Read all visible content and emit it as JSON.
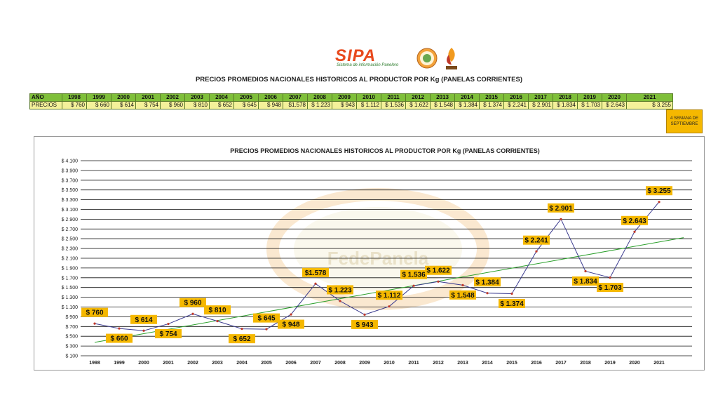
{
  "header": {
    "brand": "SIPA",
    "brand_subtitle": "Sistema de información Panelero",
    "page_title": "PRECIOS PROMEDIOS NACIONALES HISTORICOS AL PRODUCTOR POR Kg (PANELAS CORRIENTES)"
  },
  "table": {
    "year_label": "AÑO",
    "price_label": "PRECIOS",
    "years": [
      "1998",
      "1999",
      "2000",
      "2001",
      "2002",
      "2003",
      "2004",
      "2005",
      "2006",
      "2007",
      "2008",
      "2009",
      "2010",
      "2011",
      "2012",
      "2013",
      "2014",
      "2015",
      "2016",
      "2017",
      "2018",
      "2019",
      "2020",
      "2021"
    ],
    "prices": [
      "$ 760",
      "$ 660",
      "$ 614",
      "$ 754",
      "$ 960",
      "$ 810",
      "$ 652",
      "$ 645",
      "$ 948",
      "$1.578",
      "$ 1.223",
      "$ 943",
      "$ 1.112",
      "$ 1.536",
      "$ 1.622",
      "$ 1.548",
      "$ 1.384",
      "$ 1.374",
      "$ 2.241",
      "$ 2.901",
      "$ 1.834",
      "$ 1.703",
      "$ 2.643",
      "$ 3.255"
    ],
    "note": "4 SEMANA DE SEPTIEMBRE"
  },
  "colors": {
    "line": "#3b3b8f",
    "trend": "#2ca02c",
    "label_bg": "#f5b800",
    "year_header": "#7fbf3a",
    "price_row": "#f4f19a",
    "brand": "#e8491d"
  },
  "chart_data": {
    "type": "line",
    "title": "PRECIOS PROMEDIOS NACIONALES HISTORICOS AL PRODUCTOR POR Kg (PANELAS CORRIENTES)",
    "categories": [
      "1998",
      "1999",
      "2000",
      "2001",
      "2002",
      "2003",
      "2004",
      "2005",
      "2006",
      "2007",
      "2008",
      "2009",
      "2010",
      "2011",
      "2012",
      "2013",
      "2014",
      "2015",
      "2016",
      "2017",
      "2018",
      "2019",
      "2020",
      "2021"
    ],
    "series": [
      {
        "values": [
          760,
          660,
          614,
          754,
          960,
          810,
          652,
          645,
          948,
          1578,
          1223,
          943,
          1112,
          1536,
          1622,
          1548,
          1384,
          1374,
          2241,
          2901,
          1834,
          1703,
          2643,
          3255
        ]
      }
    ],
    "data_labels": [
      "$ 760",
      "$ 660",
      "$ 614",
      "$ 754",
      "$ 960",
      "$ 810",
      "$ 652",
      "$ 645",
      "$ 948",
      "$1.578",
      "$ 1.223",
      "$ 943",
      "$ 1.112",
      "$ 1.536",
      "$ 1.622",
      "$ 1.548",
      "$ 1.384",
      "$ 1.374",
      "$ 2.241",
      "$ 2.901",
      "$ 1.834",
      "$ 1.703",
      "$ 2.643",
      "$ 3.255"
    ],
    "label_side": [
      "above",
      "below",
      "above",
      "below",
      "above",
      "above",
      "below",
      "above",
      "below",
      "above",
      "above",
      "below",
      "above",
      "above",
      "above",
      "below",
      "above",
      "below",
      "above",
      "above",
      "below",
      "below",
      "above",
      "above"
    ],
    "trendline": {
      "type": "linear",
      "x_range": [
        1998,
        2022
      ]
    },
    "ylim": [
      100,
      4100
    ],
    "yticks": [
      100,
      300,
      500,
      700,
      900,
      1100,
      1300,
      1500,
      1700,
      1900,
      2100,
      2300,
      2500,
      2700,
      2900,
      3100,
      3300,
      3500,
      3700,
      3900,
      4100
    ],
    "ytick_labels": [
      "$ 100",
      "$ 300",
      "$ 500",
      "$ 700",
      "$ 900",
      "$ 1.100",
      "$ 1.300",
      "$ 1.500",
      "$ 1.700",
      "$ 1.900",
      "$ 2.100",
      "$ 2.300",
      "$ 2.500",
      "$ 2.700",
      "$ 2.900",
      "$ 3.100",
      "$ 3.300",
      "$ 3.500",
      "$ 3.700",
      "$ 3.900",
      "$ 4.100"
    ],
    "grid": true,
    "legend": "none",
    "watermark": "FedePanela"
  }
}
